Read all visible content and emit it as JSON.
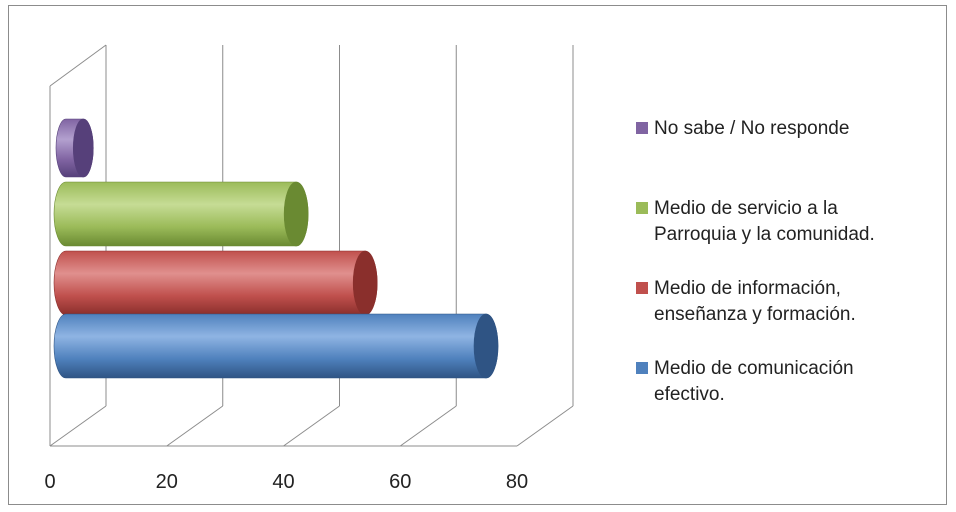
{
  "chart_data": {
    "type": "bar",
    "orientation": "horizontal",
    "style": "3d-cylinder",
    "title": "",
    "xlabel": "",
    "ylabel": "",
    "xlim": [
      0,
      80
    ],
    "x_ticks": [
      "0",
      "20",
      "40",
      "60",
      "80"
    ],
    "grid": true,
    "legend_position": "right",
    "series": [
      {
        "name": "Medio de comunicación efectivo.",
        "value": 73,
        "color": "#4f81bd",
        "color_dark": "#2f5484",
        "color_light": "#8fb4e3"
      },
      {
        "name": "Medio de información, enseñanza y formación.",
        "value": 52,
        "color": "#c0504d",
        "color_dark": "#8a2f2c",
        "color_light": "#e0908e"
      },
      {
        "name": "Medio de servicio a la Parroquia y la comunidad.",
        "value": 40,
        "color": "#9bbb59",
        "color_dark": "#6a8a32",
        "color_light": "#c6dc95"
      },
      {
        "name": "No sabe / No responde",
        "value": 3,
        "color": "#8064a2",
        "color_dark": "#56407a",
        "color_light": "#b3a0cf"
      }
    ]
  },
  "legend": {
    "items": [
      {
        "line1": "No sabe / No responde",
        "line2": "",
        "color": "#8064a2"
      },
      {
        "line1": "Medio de servicio a la",
        "line2": "Parroquia y la comunidad.",
        "color": "#9bbb59"
      },
      {
        "line1": "Medio de información,",
        "line2": "enseñanza y formación.",
        "color": "#c0504d"
      },
      {
        "line1": "Medio de comunicación",
        "line2": "efectivo.",
        "color": "#4f81bd"
      }
    ]
  }
}
